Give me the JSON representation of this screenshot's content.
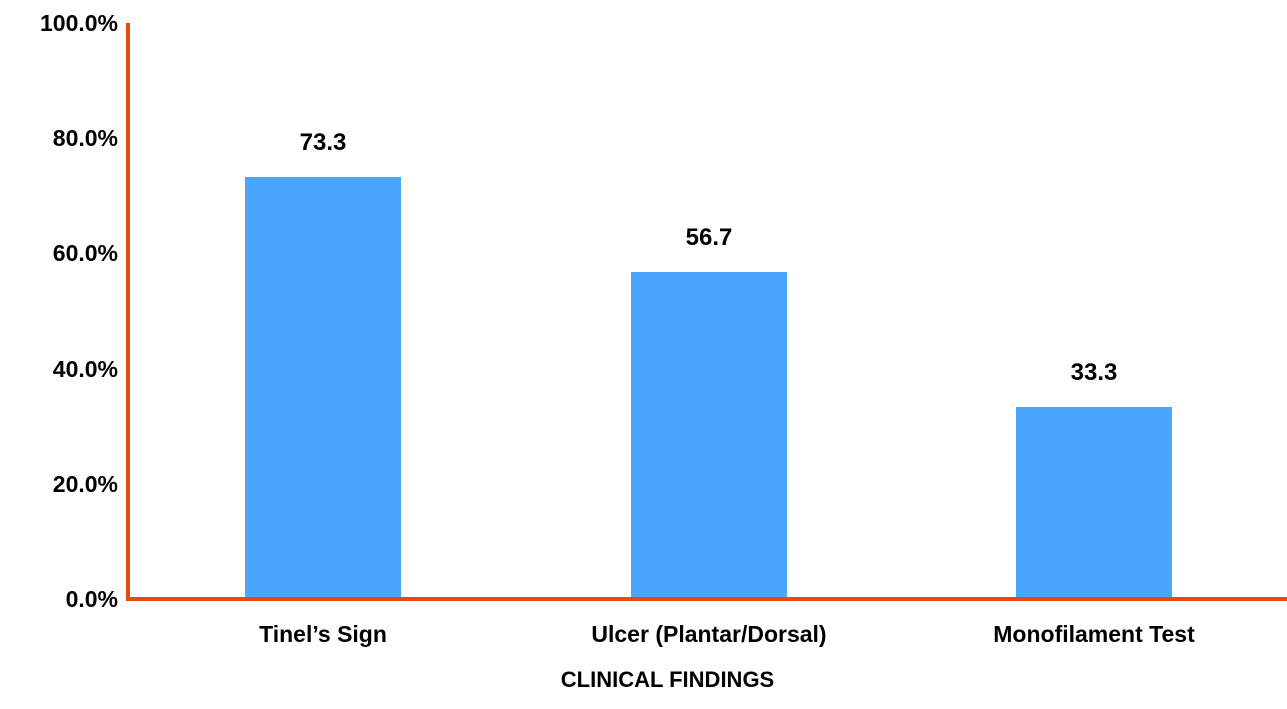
{
  "chart_data": {
    "type": "bar",
    "title": "",
    "categories": [
      "Tinel’s Sign",
      "Ulcer (Plantar/Dorsal)",
      "Monofilament Test"
    ],
    "values": [
      73.3,
      56.7,
      33.3
    ],
    "value_labels": [
      "73.3",
      "56.7",
      "33.3"
    ],
    "xlabel": "CLINICAL FINDINGS",
    "ylabel": "",
    "ylim": [
      0,
      100
    ],
    "ytick_values": [
      0,
      20,
      40,
      60,
      80,
      100
    ],
    "ytick_labels": [
      "0.0%",
      "20.0%",
      "40.0%",
      "60.0%",
      "80.0%",
      "100.0%"
    ],
    "grid": false,
    "legend": false,
    "bar_color": "#4AA6FA",
    "axis_color": "#E8490C",
    "text_color": "#000000"
  }
}
